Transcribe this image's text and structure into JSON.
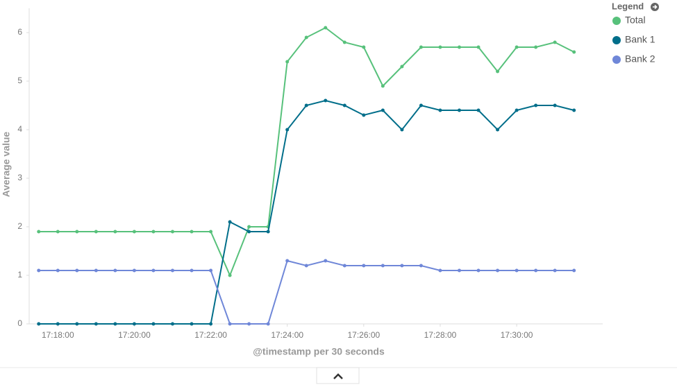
{
  "chart_data": {
    "type": "line",
    "legend_title": "Legend",
    "x_label": "@timestamp per 30 seconds",
    "y_label": "Average value",
    "x": [
      "17:17:30",
      "17:18:00",
      "17:18:30",
      "17:19:00",
      "17:19:30",
      "17:20:00",
      "17:20:30",
      "17:21:00",
      "17:21:30",
      "17:22:00",
      "17:22:30",
      "17:23:00",
      "17:23:30",
      "17:24:00",
      "17:24:30",
      "17:25:00",
      "17:25:30",
      "17:26:00",
      "17:26:30",
      "17:27:00",
      "17:27:30",
      "17:28:00",
      "17:28:30",
      "17:29:00",
      "17:29:30",
      "17:30:00",
      "17:30:30",
      "17:31:00",
      "17:31:30"
    ],
    "xlim": [
      "17:17:15",
      "17:32:15"
    ],
    "xticks": [
      "17:18:00",
      "17:20:00",
      "17:22:00",
      "17:24:00",
      "17:26:00",
      "17:28:00",
      "17:30:00"
    ],
    "ylim": [
      0,
      6.5
    ],
    "yticks": [
      0,
      1,
      2,
      3,
      4,
      5,
      6
    ],
    "series": [
      {
        "name": "Total",
        "color": "#57c17b",
        "values": [
          1.9,
          1.9,
          1.9,
          1.9,
          1.9,
          1.9,
          1.9,
          1.9,
          1.9,
          1.9,
          1.0,
          2.0,
          2.0,
          5.4,
          5.9,
          6.1,
          5.8,
          5.7,
          4.9,
          5.3,
          5.7,
          5.7,
          5.7,
          5.7,
          5.2,
          5.7,
          5.7,
          5.8,
          5.6
        ]
      },
      {
        "name": "Bank 1",
        "color": "#006e8a",
        "values": [
          0,
          0,
          0,
          0,
          0,
          0,
          0,
          0,
          0,
          0,
          2.1,
          1.9,
          1.9,
          4.0,
          4.5,
          4.6,
          4.5,
          4.3,
          4.4,
          4.0,
          4.5,
          4.4,
          4.4,
          4.4,
          4.0,
          4.4,
          4.5,
          4.5,
          4.4
        ]
      },
      {
        "name": "Bank 2",
        "color": "#6f87d8",
        "values": [
          1.1,
          1.1,
          1.1,
          1.1,
          1.1,
          1.1,
          1.1,
          1.1,
          1.1,
          1.1,
          0,
          0,
          0,
          1.3,
          1.2,
          1.3,
          1.2,
          1.2,
          1.2,
          1.2,
          1.2,
          1.1,
          1.1,
          1.1,
          1.1,
          1.1,
          1.1,
          1.1,
          1.1
        ]
      }
    ]
  }
}
